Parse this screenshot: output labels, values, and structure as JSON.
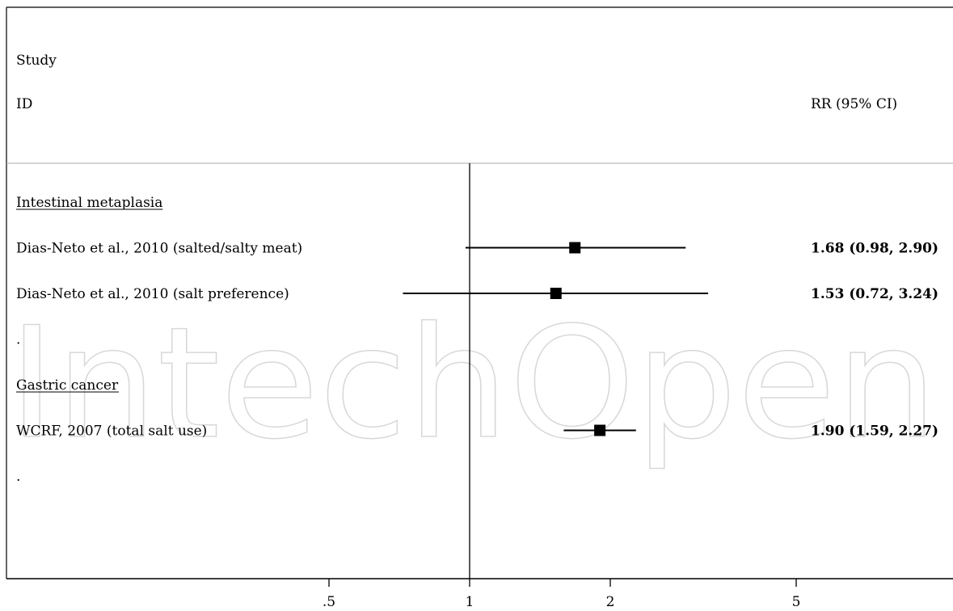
{
  "header": {
    "study_label": "Study",
    "id_label": "ID",
    "rr_label": "RR (95% CI)"
  },
  "watermark": "IntechOpen",
  "chart_data": {
    "type": "forest",
    "x_scale": "log",
    "xlim": [
      0.42,
      9.0
    ],
    "reference_line": 1,
    "x_ticks": [
      {
        "value": 0.5,
        "label": ".5"
      },
      {
        "value": 1,
        "label": "1"
      },
      {
        "value": 2,
        "label": "2"
      },
      {
        "value": 5,
        "label": "5"
      }
    ],
    "rows": [
      {
        "kind": "heading",
        "label": "Intestinal metaplasia"
      },
      {
        "kind": "study",
        "label": "Dias-Neto et al., 2010 (salted/salty meat)",
        "rr": 1.68,
        "lo": 0.98,
        "hi": 2.9,
        "ci_text": "1.68 (0.98, 2.90)"
      },
      {
        "kind": "study",
        "label": "Dias-Neto et al., 2010 (salt preference)",
        "rr": 1.53,
        "lo": 0.72,
        "hi": 3.24,
        "ci_text": "1.53 (0.72, 3.24)"
      },
      {
        "kind": "spacer",
        "label": "."
      },
      {
        "kind": "heading",
        "label": "Gastric cancer"
      },
      {
        "kind": "study",
        "label": "WCRF, 2007 (total salt use)",
        "rr": 1.9,
        "lo": 1.59,
        "hi": 2.27,
        "ci_text": "1.90 (1.59, 2.27)"
      },
      {
        "kind": "spacer",
        "label": "."
      }
    ]
  }
}
